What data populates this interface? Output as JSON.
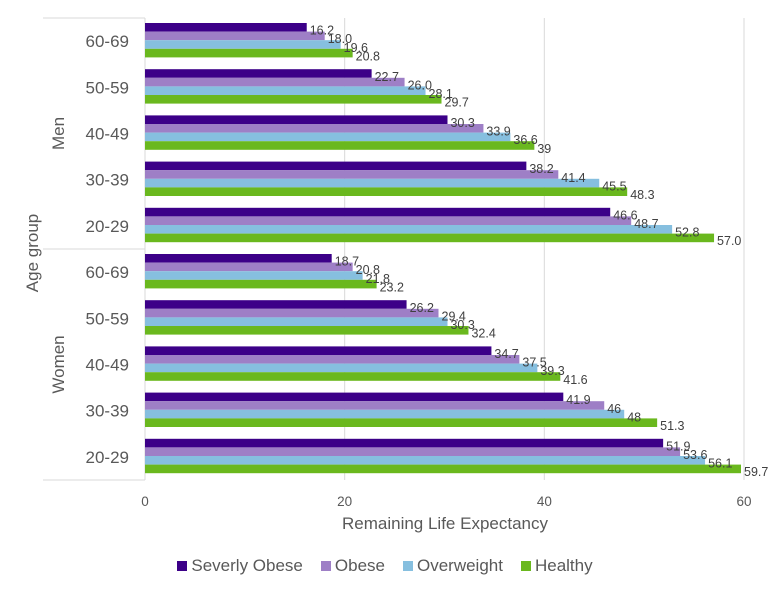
{
  "chart_data": {
    "type": "bar",
    "orientation": "horizontal",
    "title": "",
    "xlabel": "Remaining Life Expectancy",
    "ylabel": "Age group",
    "xlim": [
      0,
      60
    ],
    "xticks": [
      0,
      20,
      40,
      60
    ],
    "grid": true,
    "legend_position": "bottom",
    "groups": [
      {
        "name": "Men",
        "categories": [
          "60-69",
          "50-59",
          "40-49",
          "30-39",
          "20-29"
        ],
        "series": [
          {
            "name": "Severly Obese",
            "values": [
              16.2,
              22.7,
              30.3,
              38.2,
              46.6
            ],
            "labels": [
              "16.2",
              "22.7",
              "30.3",
              "38.2",
              "46.6"
            ]
          },
          {
            "name": "Obese",
            "values": [
              18.0,
              26.0,
              33.9,
              41.4,
              48.7
            ],
            "labels": [
              "18.0",
              "26.0",
              "33.9",
              "41.4",
              "48.7"
            ]
          },
          {
            "name": "Overweight",
            "values": [
              19.6,
              28.1,
              36.6,
              45.5,
              52.8
            ],
            "labels": [
              "19.6",
              "28.1",
              "36.6",
              "45.5",
              "52.8"
            ]
          },
          {
            "name": "Healthy",
            "values": [
              20.8,
              29.7,
              39,
              48.3,
              57.0
            ],
            "labels": [
              "20.8",
              "29.7",
              "39",
              "48.3",
              "57.0"
            ]
          }
        ]
      },
      {
        "name": "Women",
        "categories": [
          "60-69",
          "50-59",
          "40-49",
          "30-39",
          "20-29"
        ],
        "series": [
          {
            "name": "Severly Obese",
            "values": [
              18.7,
              26.2,
              34.7,
              41.9,
              51.9
            ],
            "labels": [
              "18.7",
              "26.2",
              "34.7",
              "41.9",
              "51.9"
            ]
          },
          {
            "name": "Obese",
            "values": [
              20.8,
              29.4,
              37.5,
              46,
              53.6
            ],
            "labels": [
              "20.8",
              "29.4",
              "37.5",
              "46",
              "53.6"
            ]
          },
          {
            "name": "Overweight",
            "values": [
              21.8,
              30.3,
              39.3,
              48,
              56.1
            ],
            "labels": [
              "21.8",
              "30.3",
              "39.3",
              "48",
              "56.1"
            ]
          },
          {
            "name": "Healthy",
            "values": [
              23.2,
              32.4,
              41.6,
              51.3,
              59.7
            ],
            "labels": [
              "23.2",
              "32.4",
              "41.6",
              "51.3",
              "59.7"
            ]
          }
        ]
      }
    ],
    "colors": {
      "Severly Obese": "#3c0088",
      "Obese": "#9e7fc6",
      "Overweight": "#86bfdf",
      "Healthy": "#6ab81e"
    }
  },
  "legend": {
    "items": [
      {
        "label": "Severly Obese",
        "color": "#3c0088"
      },
      {
        "label": "Obese",
        "color": "#9e7fc6"
      },
      {
        "label": "Overweight",
        "color": "#86bfdf"
      },
      {
        "label": "Healthy",
        "color": "#6ab81e"
      }
    ]
  }
}
